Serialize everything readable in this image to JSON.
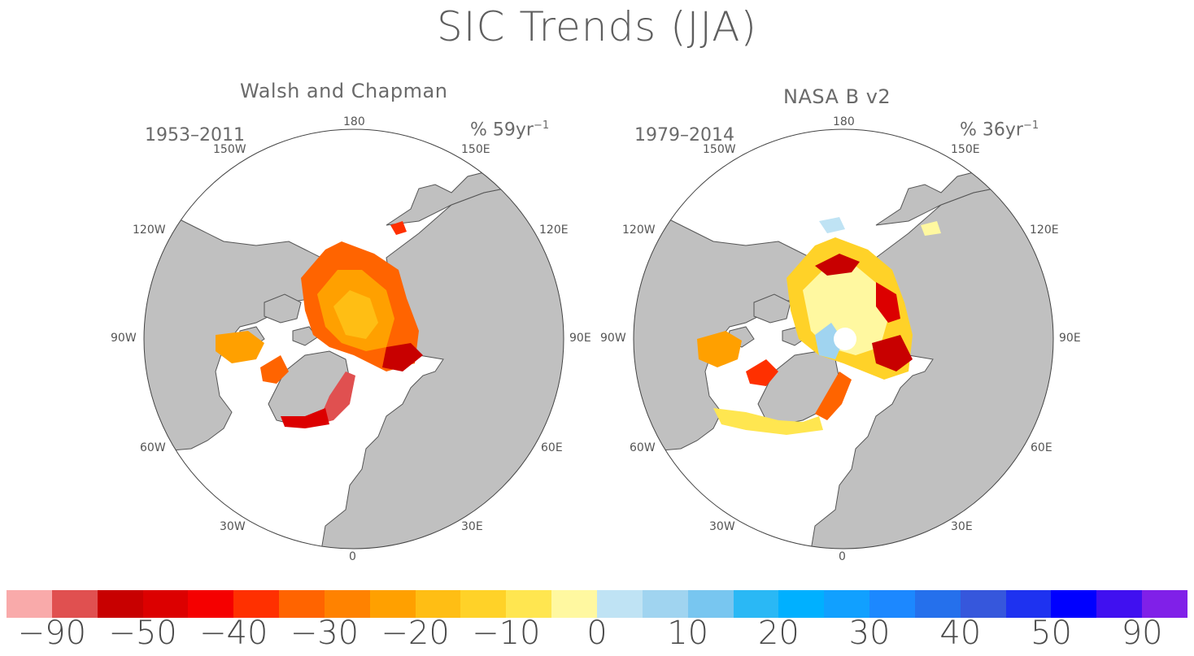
{
  "title": "SIC Trends (JJA)",
  "panels": [
    {
      "id": "left",
      "title": "Walsh and Chapman",
      "period": "1953–2011",
      "units_prefix": "% 59yr",
      "units_exp": "−1",
      "lon_labels": {
        "l180": "180",
        "l150w": "150W",
        "l150e": "150E",
        "l120w": "120W",
        "l120e": "120E",
        "l90w": "90W",
        "l90e": "90E",
        "l60w": "60W",
        "l60e": "60E",
        "l30w": "30W",
        "l30e": "30E",
        "l0": "0"
      }
    },
    {
      "id": "right",
      "title": "NASA B v2",
      "period": "1979–2014",
      "units_prefix": "% 36yr",
      "units_exp": "−1",
      "lon_labels": {
        "l180": "180",
        "l150w": "150W",
        "l150e": "150E",
        "l120w": "120W",
        "l120e": "120E",
        "l90w": "90W",
        "l90e": "90E",
        "l60w": "60W",
        "l60e": "60E",
        "l30w": "30W",
        "l30e": "30E",
        "l0": "0"
      }
    }
  ],
  "colors": {
    "land": "#c0c0c0",
    "ocean": "#ffffff",
    "coast": "#555555"
  },
  "colorbar": {
    "colors": [
      "#f9aaaa",
      "#e05050",
      "#c80000",
      "#dc0000",
      "#f50000",
      "#ff3000",
      "#ff6400",
      "#ff8200",
      "#ffa000",
      "#ffbe14",
      "#ffd228",
      "#ffe650",
      "#fff8a0",
      "#bfe3f4",
      "#a0d4f0",
      "#78c6f0",
      "#2ab8f5",
      "#00b0ff",
      "#11a0ff",
      "#1c88ff",
      "#2570ec",
      "#3657dc",
      "#1e32f0",
      "#0000ff",
      "#4010f0",
      "#8020e8"
    ],
    "tick_labels": [
      "−90",
      "−50",
      "−40",
      "−30",
      "−20",
      "−10",
      "0",
      "10",
      "20",
      "30",
      "40",
      "50",
      "90"
    ]
  }
}
